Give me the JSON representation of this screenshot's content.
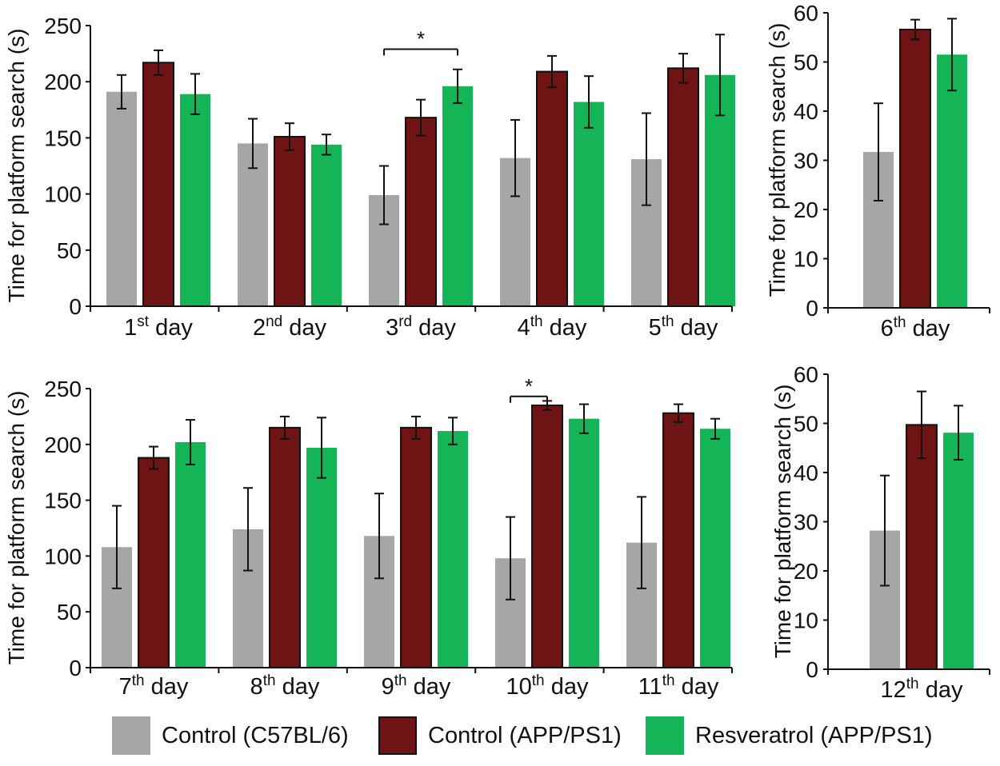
{
  "chart_data": [
    {
      "type": "bar",
      "title": "",
      "ylabel": "Time for platform search (s)",
      "xlabel": "",
      "ylim": [
        0,
        250
      ],
      "yticks": [
        0,
        50,
        100,
        150,
        200,
        250
      ],
      "categories": [
        {
          "num": "1",
          "sup": "st",
          "rest": " day"
        },
        {
          "num": "2",
          "sup": "nd",
          "rest": " day"
        },
        {
          "num": "3",
          "sup": "rd",
          "rest": " day"
        },
        {
          "num": "4",
          "sup": "th",
          "rest": " day"
        },
        {
          "num": "5",
          "sup": "th",
          "rest": " day"
        }
      ],
      "series": [
        {
          "name": "Control (C57BL/6)",
          "values": [
            191,
            145,
            99,
            132,
            131
          ],
          "errors": [
            15,
            22,
            26,
            34,
            41
          ]
        },
        {
          "name": "Control (APP/PS1)",
          "values": [
            217,
            151,
            168,
            209,
            212
          ],
          "errors": [
            11,
            12,
            16,
            14,
            13
          ]
        },
        {
          "name": "Resveratrol (APP/PS1)",
          "values": [
            189,
            144,
            196,
            182,
            206
          ],
          "errors": [
            18,
            9,
            15,
            23,
            36
          ]
        }
      ],
      "annotations": [
        {
          "text": "*",
          "category_index": 2,
          "from_series": 0,
          "to_series": 2,
          "y": 229
        }
      ]
    },
    {
      "type": "bar",
      "title": "",
      "ylabel": "Time for platform search (s)",
      "xlabel": "",
      "ylim": [
        0,
        60
      ],
      "yticks": [
        0,
        10,
        20,
        30,
        40,
        50,
        60
      ],
      "categories": [
        {
          "num": "6",
          "sup": "th",
          "rest": " day"
        }
      ],
      "series": [
        {
          "name": "Control (C57BL/6)",
          "values": [
            31.7
          ],
          "errors": [
            9.9
          ]
        },
        {
          "name": "Control (APP/PS1)",
          "values": [
            56.6
          ],
          "errors": [
            2.0
          ]
        },
        {
          "name": "Resveratrol (APP/PS1)",
          "values": [
            51.5
          ],
          "errors": [
            7.3
          ]
        }
      ],
      "annotations": []
    },
    {
      "type": "bar",
      "title": "",
      "ylabel": "Time for platform search (s)",
      "xlabel": "",
      "ylim": [
        0,
        250
      ],
      "yticks": [
        0,
        50,
        100,
        150,
        200,
        250
      ],
      "categories": [
        {
          "num": "7",
          "sup": "th",
          "rest": " day"
        },
        {
          "num": "8",
          "sup": "th",
          "rest": " day"
        },
        {
          "num": "9",
          "sup": "th",
          "rest": " day"
        },
        {
          "num": "10",
          "sup": "th",
          "rest": " day"
        },
        {
          "num": "11",
          "sup": "th",
          "rest": " day"
        }
      ],
      "series": [
        {
          "name": "Control (C57BL/6)",
          "values": [
            108,
            124,
            118,
            98,
            112
          ],
          "errors": [
            37,
            37,
            38,
            37,
            41
          ]
        },
        {
          "name": "Control (APP/PS1)",
          "values": [
            188,
            215,
            215,
            235,
            228
          ],
          "errors": [
            10,
            10,
            10,
            4,
            8
          ]
        },
        {
          "name": "Resveratrol (APP/PS1)",
          "values": [
            202,
            197,
            212,
            223,
            214
          ],
          "errors": [
            20,
            27,
            12,
            13,
            9
          ]
        }
      ],
      "annotations": [
        {
          "text": "*",
          "category_index": 3,
          "from_series": 0,
          "to_series": 1,
          "y": 243
        }
      ]
    },
    {
      "type": "bar",
      "title": "",
      "ylabel": "Time for platform search (s)",
      "xlabel": "",
      "ylim": [
        0,
        60
      ],
      "yticks": [
        0,
        10,
        20,
        30,
        40,
        50,
        60
      ],
      "categories": [
        {
          "num": "12",
          "sup": "th",
          "rest": " day"
        }
      ],
      "series": [
        {
          "name": "Control (C57BL/6)",
          "values": [
            28.2
          ],
          "errors": [
            11.2
          ]
        },
        {
          "name": "Control (APP/PS1)",
          "values": [
            49.7
          ],
          "errors": [
            6.8
          ]
        },
        {
          "name": "Resveratrol (APP/PS1)",
          "values": [
            48.1
          ],
          "errors": [
            5.5
          ]
        }
      ],
      "annotations": []
    }
  ],
  "legend": {
    "items": [
      {
        "label": "Control (C57BL/6)",
        "color": "#a6a6a6"
      },
      {
        "label": "Control (APP/PS1)",
        "color": "#6e1414"
      },
      {
        "label": "Resveratrol (APP/PS1)",
        "color": "#14b457"
      }
    ]
  },
  "colors": {
    "c57": "#a6a6a6",
    "app": "#6e1414",
    "res": "#14b457",
    "axis": "#111111"
  }
}
